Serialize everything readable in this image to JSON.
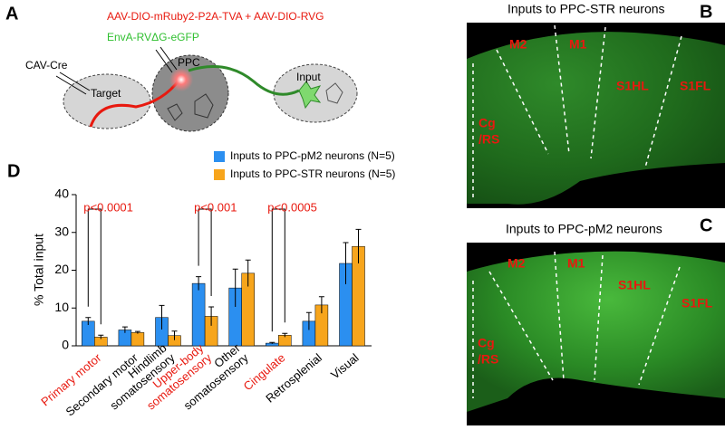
{
  "panel_a": {
    "label": "A",
    "vectors": "AAV-DIO-mRuby2-P2A-TVA + AAV-DIO-RVG",
    "rabies": "EnvA-RVΔG-eGFP",
    "injection": "CAV-Cre",
    "target": "Target",
    "ppc": "PPC",
    "input": "Input"
  },
  "panel_b": {
    "label": "B",
    "title": "Inputs to PPC-STR neurons",
    "regions": [
      "M2",
      "M1",
      "S1HL",
      "S1FL"
    ],
    "cg_label": [
      "Cg",
      "/RS"
    ]
  },
  "panel_c": {
    "label": "C",
    "title": "Inputs to PPC-pM2 neurons",
    "regions": [
      "M2",
      "M1",
      "S1HL",
      "S1FL"
    ],
    "cg_label": [
      "Cg",
      "/RS"
    ]
  },
  "chart_data": {
    "type": "bar",
    "label": "D",
    "ylabel": "% Total input",
    "categories": [
      [
        "Primary motor"
      ],
      [
        "Secondary motor"
      ],
      [
        "Hindlimb",
        "somatosensory"
      ],
      [
        "Upper-body",
        "somatosensory"
      ],
      [
        "Other",
        "somatosensory"
      ],
      [
        "Cingulate"
      ],
      [
        "Retrosplenial"
      ],
      [
        "Visual"
      ]
    ],
    "category_colors": [
      "#e8190f",
      "#000000",
      "#000000",
      "#e8190f",
      "#000000",
      "#e8190f",
      "#000000",
      "#000000"
    ],
    "series": [
      {
        "name": "Inputs to PPC-pM2 neurons (N=5)",
        "color": "#2b8ff0",
        "values": [
          6.5,
          4.2,
          7.5,
          16.5,
          15.3,
          0.7,
          6.5,
          21.8
        ],
        "errors": [
          1.0,
          0.8,
          3.2,
          1.8,
          5.0,
          0.2,
          2.3,
          5.5
        ]
      },
      {
        "name": "Inputs to PPC-STR neurons (N=5)",
        "color": "#f7a51c",
        "values": [
          2.3,
          3.5,
          2.7,
          7.8,
          19.2,
          2.8,
          10.8,
          26.3
        ],
        "errors": [
          0.5,
          0.3,
          1.2,
          2.5,
          3.5,
          0.5,
          2.2,
          4.5
        ]
      }
    ],
    "significance": [
      "p<0.0001",
      null,
      null,
      "p<0.001",
      null,
      "p<0.0005",
      null,
      null
    ],
    "ylim": [
      0,
      40
    ],
    "yticks": [
      0,
      10,
      20,
      30,
      40
    ]
  }
}
